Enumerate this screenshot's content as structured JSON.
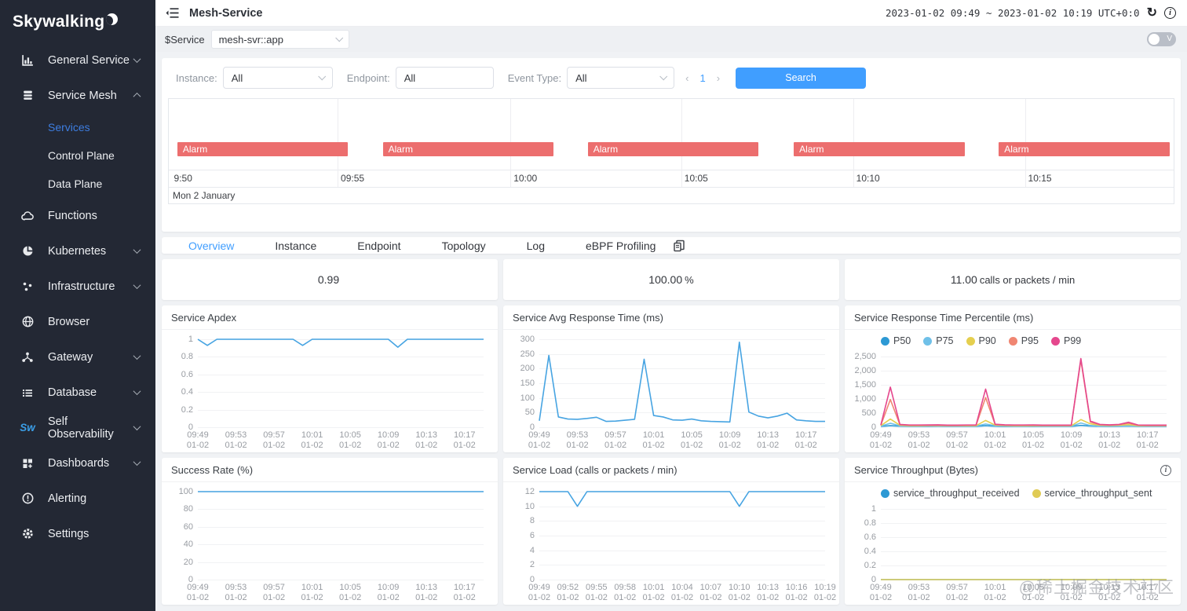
{
  "sidebar": {
    "logo": "Skywalking",
    "items": [
      {
        "label": "General Service"
      },
      {
        "label": "Service Mesh"
      },
      {
        "label": "Services"
      },
      {
        "label": "Control Plane"
      },
      {
        "label": "Data Plane"
      },
      {
        "label": "Functions"
      },
      {
        "label": "Kubernetes"
      },
      {
        "label": "Infrastructure"
      },
      {
        "label": "Browser"
      },
      {
        "label": "Gateway"
      },
      {
        "label": "Database"
      },
      {
        "label": "Self Observability"
      },
      {
        "label": "Dashboards"
      },
      {
        "label": "Alerting"
      },
      {
        "label": "Settings"
      }
    ]
  },
  "header": {
    "title": "Mesh-Service",
    "time_range": "2023-01-02 09:49 ~ 2023-01-02 10:19 UTC+0:0",
    "refresh_icon": "↻",
    "info_icon": "i",
    "toggle_label": "V"
  },
  "service_bar": {
    "label": "$Service",
    "value": "mesh-svr::app"
  },
  "filters": {
    "instance_label": "Instance:",
    "instance_value": "All",
    "endpoint_label": "Endpoint:",
    "endpoint_value": "All",
    "event_type_label": "Event Type:",
    "event_type_value": "All",
    "page_prev": "‹",
    "page_number": "1",
    "page_next": "›",
    "search_label": "Search"
  },
  "timeline": {
    "date_label": "Mon 2 January",
    "gridline_pcts": [
      16.8,
      34.0,
      51.0,
      68.1,
      85.2
    ],
    "time_labels": [
      {
        "text": "9:50",
        "pct": 0.2
      },
      {
        "text": "09:55",
        "pct": 16.8
      },
      {
        "text": "10:00",
        "pct": 34.0
      },
      {
        "text": "10:05",
        "pct": 51.0
      },
      {
        "text": "10:10",
        "pct": 68.1
      },
      {
        "text": "10:15",
        "pct": 85.2
      }
    ],
    "bars": [
      {
        "label": "Alarm",
        "left_pct": 0.85,
        "width_pct": 17
      },
      {
        "label": "Alarm",
        "left_pct": 21.3,
        "width_pct": 17
      },
      {
        "label": "Alarm",
        "left_pct": 41.7,
        "width_pct": 17
      },
      {
        "label": "Alarm",
        "left_pct": 62.2,
        "width_pct": 17
      },
      {
        "label": "Alarm",
        "left_pct": 82.6,
        "width_pct": 17
      }
    ]
  },
  "tabs": [
    {
      "label": "Overview",
      "active": true
    },
    {
      "label": "Instance",
      "active": false
    },
    {
      "label": "Endpoint",
      "active": false
    },
    {
      "label": "Topology",
      "active": false
    },
    {
      "label": "Log",
      "active": false
    },
    {
      "label": "eBPF Profiling",
      "active": false
    }
  ],
  "metrics": [
    {
      "value": "0.99",
      "unit": ""
    },
    {
      "value": "100.00",
      "unit": "%"
    },
    {
      "value": "11.00",
      "unit": "calls or packets / min"
    }
  ],
  "watermark": "@稀土掘金技术社区",
  "charts": [
    {
      "id": "apdex",
      "title": "Service Apdex",
      "type": "line",
      "ylim": [
        0,
        1
      ],
      "yticks": [
        1,
        0.8,
        0.6,
        0.4,
        0.2,
        0
      ],
      "ytick_labels": [
        "1",
        "0.8",
        "0.6",
        "0.4",
        "0.2",
        "0"
      ],
      "points": 31,
      "label_step": 4,
      "x_sub": "01-02",
      "x_labels": [
        "09:49",
        "09:53",
        "09:57",
        "10:01",
        "10:05",
        "10:09",
        "10:13",
        "10:17"
      ],
      "series": [
        {
          "name": "apdex",
          "color": "#47a4e2",
          "values": [
            1,
            0.93,
            1,
            1,
            1,
            1,
            1,
            1,
            1,
            1,
            1,
            0.93,
            1,
            1,
            1,
            1,
            1,
            1,
            1,
            1,
            1,
            0.91,
            1,
            1,
            1,
            1,
            1,
            1,
            1,
            1,
            1
          ]
        }
      ]
    },
    {
      "id": "avg_rt",
      "title": "Service Avg Response Time (ms)",
      "type": "line",
      "ylim": [
        0,
        300
      ],
      "yticks": [
        300,
        250,
        200,
        150,
        100,
        50,
        0
      ],
      "ytick_labels": [
        "300",
        "250",
        "200",
        "150",
        "100",
        "50",
        "0"
      ],
      "points": 31,
      "label_step": 4,
      "x_sub": "01-02",
      "x_labels": [
        "09:49",
        "09:53",
        "09:57",
        "10:01",
        "10:05",
        "10:09",
        "10:13",
        "10:17"
      ],
      "series": [
        {
          "name": "avg-response-time",
          "color": "#47a4e2",
          "values": [
            22,
            245,
            35,
            28,
            27,
            30,
            34,
            20,
            21,
            24,
            27,
            232,
            40,
            35,
            25,
            24,
            28,
            22,
            20,
            19,
            18,
            290,
            52,
            38,
            32,
            38,
            48,
            25,
            22,
            20,
            20
          ]
        }
      ]
    },
    {
      "id": "percentile",
      "title": "Service Response Time Percentile (ms)",
      "type": "line",
      "ylim": [
        0,
        2500
      ],
      "yticks": [
        2500,
        2000,
        1500,
        1000,
        500,
        0
      ],
      "ytick_labels": [
        "2,500",
        "2,000",
        "1,500",
        "1,000",
        "500",
        "0"
      ],
      "points": 31,
      "label_step": 4,
      "x_sub": "01-02",
      "x_labels": [
        "09:49",
        "09:53",
        "09:57",
        "10:01",
        "10:05",
        "10:09",
        "10:13",
        "10:17"
      ],
      "legend": [
        {
          "name": "P50",
          "color": "#2d99d4"
        },
        {
          "name": "P75",
          "color": "#6fc0e8"
        },
        {
          "name": "P90",
          "color": "#e5cf4f"
        },
        {
          "name": "P95",
          "color": "#f08672"
        },
        {
          "name": "P99",
          "color": "#e5478d"
        }
      ],
      "series": [
        {
          "name": "P50",
          "color": "#2d99d4",
          "values": [
            30,
            55,
            35,
            30,
            30,
            30,
            32,
            28,
            28,
            30,
            30,
            55,
            35,
            30,
            28,
            28,
            30,
            28,
            28,
            28,
            28,
            65,
            40,
            32,
            30,
            32,
            38,
            30,
            28,
            28,
            28
          ]
        },
        {
          "name": "P75",
          "color": "#6fc0e8",
          "values": [
            40,
            140,
            50,
            40,
            40,
            42,
            45,
            38,
            38,
            40,
            40,
            115,
            55,
            45,
            40,
            40,
            42,
            38,
            38,
            38,
            38,
            150,
            60,
            45,
            42,
            45,
            55,
            40,
            38,
            38,
            38
          ]
        },
        {
          "name": "P90",
          "color": "#e5cf4f",
          "values": [
            55,
            290,
            70,
            55,
            55,
            58,
            60,
            52,
            52,
            55,
            55,
            240,
            75,
            60,
            55,
            55,
            58,
            52,
            52,
            52,
            52,
            270,
            120,
            70,
            60,
            70,
            90,
            55,
            52,
            52,
            52
          ]
        },
        {
          "name": "P95",
          "color": "#f08672",
          "values": [
            70,
            980,
            90,
            70,
            70,
            72,
            75,
            65,
            65,
            70,
            70,
            1050,
            95,
            75,
            70,
            70,
            72,
            65,
            65,
            65,
            65,
            2380,
            180,
            90,
            75,
            90,
            140,
            70,
            65,
            65,
            65
          ]
        },
        {
          "name": "P99",
          "color": "#e5478d",
          "values": [
            80,
            1420,
            100,
            80,
            80,
            82,
            85,
            75,
            75,
            80,
            80,
            1350,
            105,
            85,
            80,
            80,
            82,
            75,
            75,
            75,
            75,
            2430,
            220,
            100,
            85,
            100,
            175,
            80,
            75,
            75,
            75
          ]
        }
      ]
    },
    {
      "id": "success_rate",
      "title": "Success Rate (%)",
      "type": "line",
      "ylim": [
        0,
        100
      ],
      "yticks": [
        100,
        80,
        60,
        40,
        20,
        0
      ],
      "ytick_labels": [
        "100",
        "80",
        "60",
        "40",
        "20",
        "0"
      ],
      "points": 31,
      "label_step": 4,
      "x_sub": "01-02",
      "x_labels": [
        "09:49",
        "09:53",
        "09:57",
        "10:01",
        "10:05",
        "10:09",
        "10:13",
        "10:17"
      ],
      "series": [
        {
          "name": "success-rate",
          "color": "#47a4e2",
          "values": [
            100,
            100,
            100,
            100,
            100,
            100,
            100,
            100,
            100,
            100,
            100,
            100,
            100,
            100,
            100,
            100,
            100,
            100,
            100,
            100,
            100,
            100,
            100,
            100,
            100,
            100,
            100,
            100,
            100,
            100,
            100
          ]
        }
      ]
    },
    {
      "id": "service_load",
      "title": "Service Load (calls or packets / min)",
      "type": "line",
      "ylim": [
        0,
        12
      ],
      "yticks": [
        12,
        10,
        8,
        6,
        4,
        2,
        0
      ],
      "ytick_labels": [
        "12",
        "10",
        "8",
        "6",
        "4",
        "2",
        "0"
      ],
      "points": 31,
      "label_step": 3,
      "x_sub": "01-02",
      "x_labels": [
        "09:49",
        "09:52",
        "09:55",
        "09:58",
        "10:01",
        "10:04",
        "10:07",
        "10:10",
        "10:13",
        "10:16",
        "10:19"
      ],
      "series": [
        {
          "name": "service-load",
          "color": "#47a4e2",
          "values": [
            12,
            12,
            12,
            12,
            10,
            12,
            12,
            12,
            12,
            12,
            12,
            12,
            12,
            12,
            12,
            12,
            12,
            12,
            12,
            12,
            12,
            10,
            12,
            12,
            12,
            12,
            12,
            12,
            12,
            12,
            12
          ]
        }
      ]
    },
    {
      "id": "throughput",
      "title": "Service Throughput (Bytes)",
      "type": "line",
      "has_info_icon": true,
      "ylim": [
        0,
        1
      ],
      "yticks": [
        1,
        0.8,
        0.6,
        0.4,
        0.2,
        0
      ],
      "ytick_labels": [
        "1",
        "0.8",
        "0.6",
        "0.4",
        "0.2",
        "0"
      ],
      "points": 31,
      "label_step": 4,
      "x_sub": "01-02",
      "x_labels": [
        "09:49",
        "09:53",
        "09:57",
        "10:01",
        "10:05",
        "10:09",
        "10:13",
        "10:17"
      ],
      "legend": [
        {
          "name": "service_throughput_received",
          "color": "#2d99d4"
        },
        {
          "name": "service_throughput_sent",
          "color": "#e0cb55"
        }
      ],
      "series": [
        {
          "name": "service_throughput_received",
          "color": "#2d99d4",
          "values": [
            0,
            0,
            0,
            0,
            0,
            0,
            0,
            0,
            0,
            0,
            0,
            0,
            0,
            0,
            0,
            0,
            0,
            0,
            0,
            0,
            0,
            0,
            0,
            0,
            0,
            0,
            0,
            0,
            0,
            0,
            0
          ]
        },
        {
          "name": "service_throughput_sent",
          "color": "#e0cb55",
          "values": [
            0,
            0,
            0,
            0,
            0,
            0,
            0,
            0,
            0,
            0,
            0,
            0,
            0,
            0,
            0,
            0,
            0,
            0,
            0,
            0,
            0,
            0,
            0,
            0,
            0,
            0,
            0,
            0,
            0,
            0,
            0
          ]
        }
      ]
    }
  ]
}
